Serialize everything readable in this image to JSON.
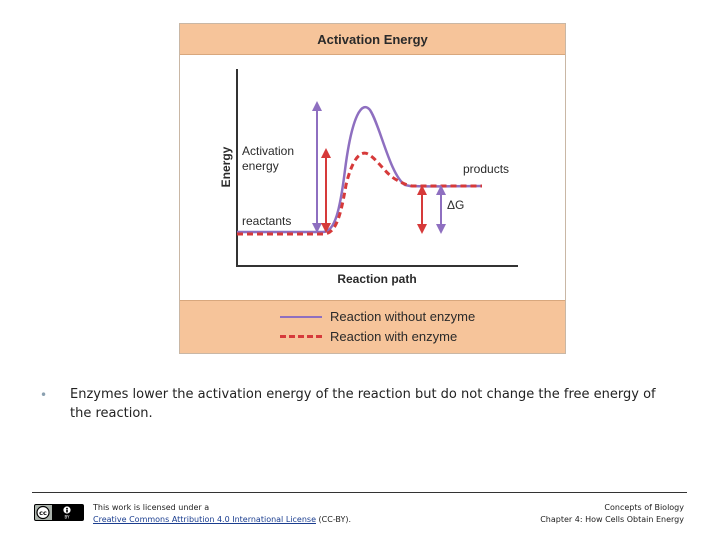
{
  "figure": {
    "title": "Activation Energy",
    "y_axis_label": "Energy",
    "x_axis_label": "Reaction path",
    "labels": {
      "activation": [
        "Activation",
        "energy"
      ],
      "reactants": "reactants",
      "products": "products",
      "delta_g": "ΔG"
    },
    "legend": {
      "without": "Reaction without enzyme",
      "with": "Reaction with enzyme"
    },
    "colors": {
      "without_enzyme": "#8e6fc0",
      "with_enzyme": "#d63a3a",
      "header_bg": "#f6c49a"
    }
  },
  "slide": {
    "bullet_symbol": "•",
    "bullet_text": "Enzymes lower the activation energy of the reaction but do not change the free energy of the reaction."
  },
  "footer": {
    "license_prefix": "This work is licensed under a",
    "license_link": "Creative Commons Attribution 4.0 International License",
    "license_suffix": " (CC-BY).",
    "course": "Concepts of Biology",
    "chapter": "Chapter 4: How Cells Obtain Energy",
    "badge": {
      "cc": "cc",
      "by": "BY"
    }
  }
}
